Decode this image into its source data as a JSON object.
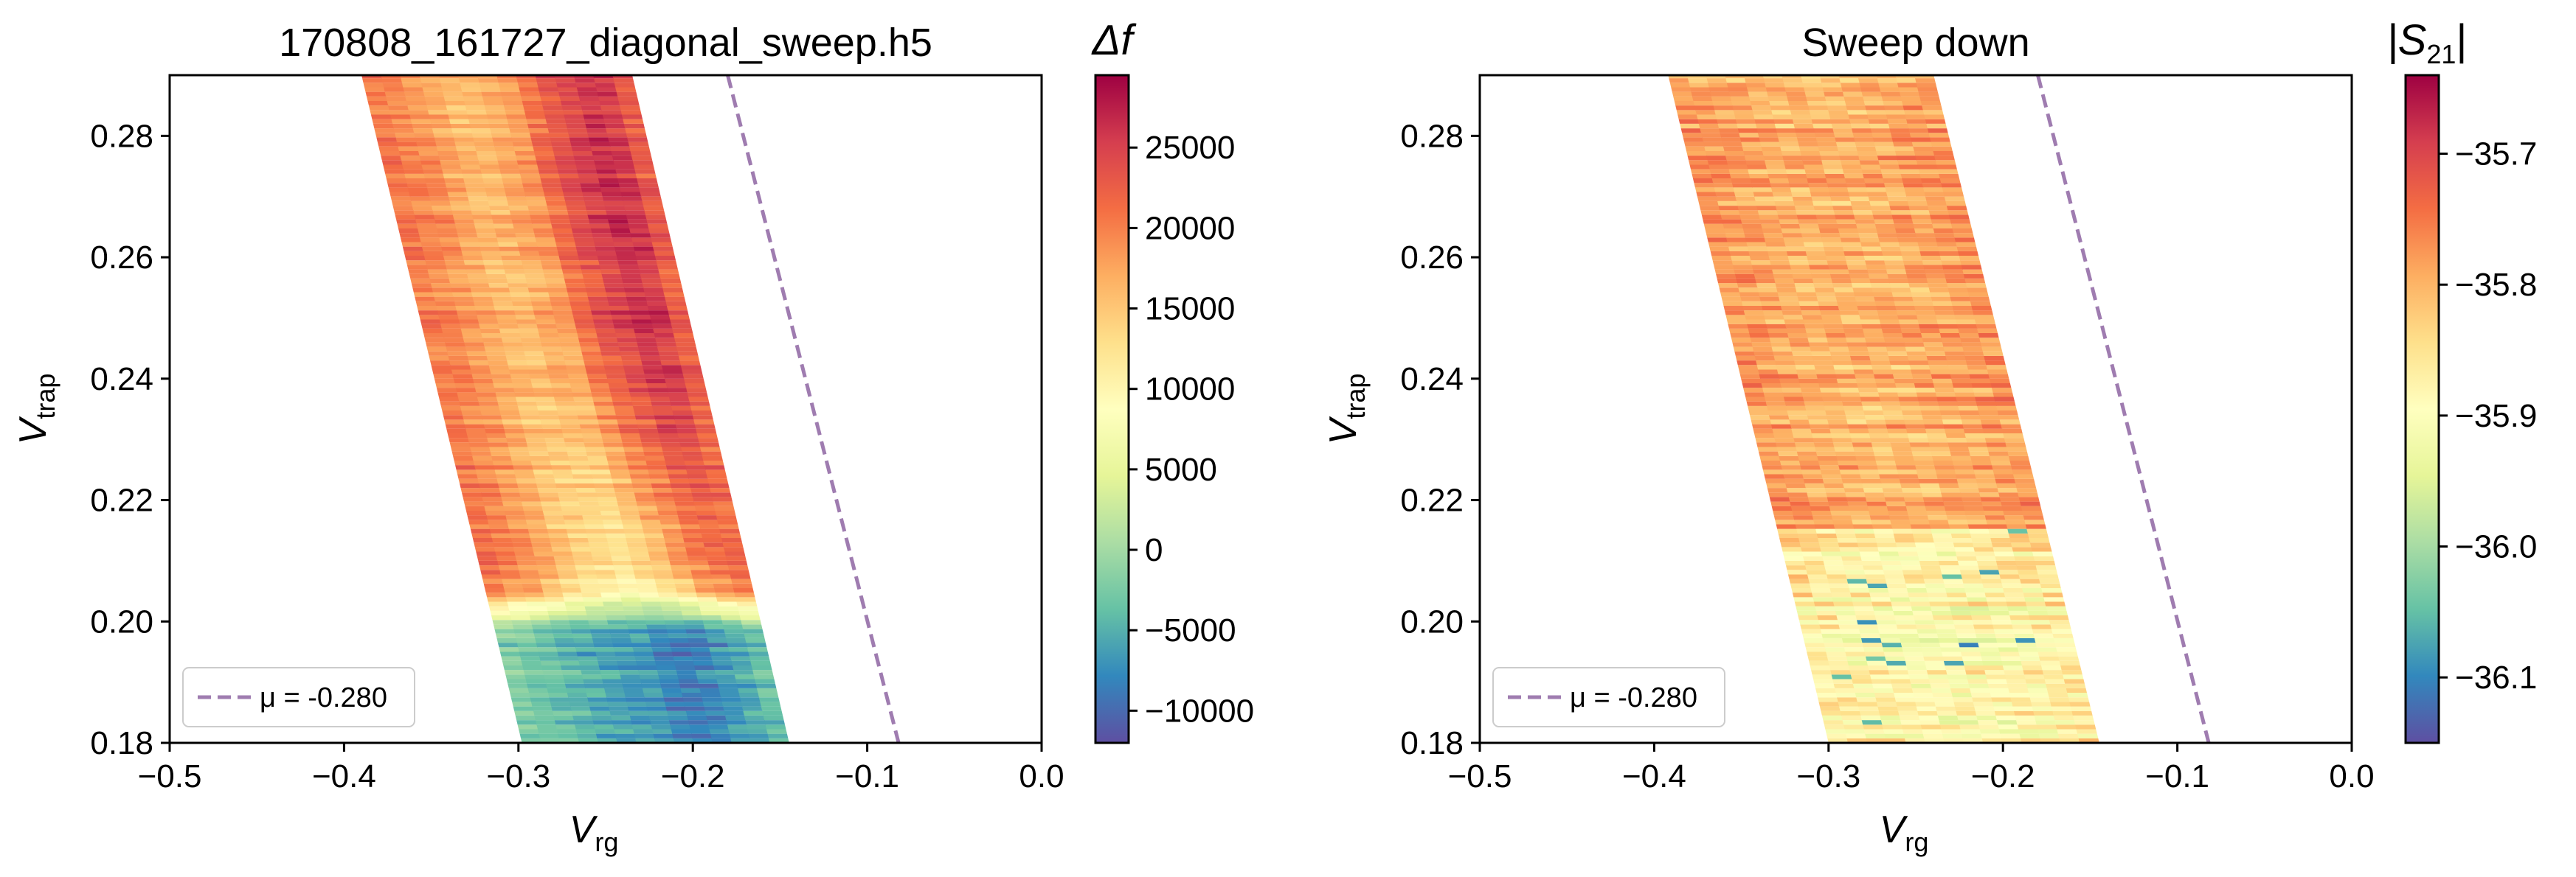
{
  "chart_data": [
    {
      "type": "heatmap",
      "title": "170808_161727_diagonal_sweep.h5",
      "xlabel": "V",
      "xlabel_sub": "rg",
      "ylabel": "V",
      "ylabel_sub": "trap",
      "xlim": [
        -0.5,
        0.0
      ],
      "ylim": [
        0.18,
        0.29
      ],
      "xticks": [
        -0.5,
        -0.4,
        -0.3,
        -0.2,
        -0.1,
        0.0
      ],
      "xtick_labels": [
        "−0.5",
        "−0.4",
        "−0.3",
        "−0.2",
        "−0.1",
        "0.0"
      ],
      "yticks": [
        0.18,
        0.2,
        0.22,
        0.24,
        0.26,
        0.28
      ],
      "ytick_labels": [
        "0.18",
        "0.20",
        "0.22",
        "0.24",
        "0.26",
        "0.28"
      ],
      "colormap": "Spectral_r",
      "colorbar_label": "Δf",
      "colorbar_range": [
        -12000,
        29500
      ],
      "colorbar_ticks": [
        -10000,
        -5000,
        0,
        5000,
        10000,
        15000,
        20000,
        25000
      ],
      "colorbar_tick_labels": [
        "−10000",
        "−5000",
        "0",
        "5000",
        "10000",
        "15000",
        "20000",
        "25000"
      ],
      "data_region": {
        "x_left_at_ymin": -0.298,
        "x_left_at_ymax": -0.39,
        "x_right_at_ymin": -0.145,
        "x_right_at_ymax": -0.235,
        "row_step": 0.00075
      },
      "value_profile": {
        "across_offsets": [
          0.0,
          0.2,
          0.35,
          0.55,
          0.62,
          0.72,
          0.86,
          1.0
        ],
        "high_v": [
          0.0,
          0.0,
          0.0,
          0.0,
          0.0,
          0.0,
          0.0,
          0.0
        ],
        "high_values": [
          21000,
          18500,
          15500,
          18500,
          22000,
          24500,
          27000,
          21500
        ],
        "mid_values": [
          21000,
          17500,
          13000,
          9500,
          11500,
          14000,
          19000,
          20500
        ],
        "low_values": [
          -2000,
          -4000,
          -6000,
          -7000,
          -8500,
          -9000,
          -6500,
          -3000
        ],
        "transition_v": [
          0.205,
          0.225
        ]
      },
      "fit_line": {
        "x": [
          -0.18,
          -0.082
        ],
        "y": [
          0.29,
          0.18
        ],
        "style": "dashed",
        "color": "#9f7cb0"
      },
      "legend": {
        "label": "μ = -0.280",
        "placement": "lower-left"
      }
    },
    {
      "type": "heatmap",
      "title": "Sweep down",
      "xlabel": "V",
      "xlabel_sub": "rg",
      "ylabel": "V",
      "ylabel_sub": "trap",
      "xlim": [
        -0.5,
        0.0
      ],
      "ylim": [
        0.18,
        0.29
      ],
      "xticks": [
        -0.5,
        -0.4,
        -0.3,
        -0.2,
        -0.1,
        0.0
      ],
      "xtick_labels": [
        "−0.5",
        "−0.4",
        "−0.3",
        "−0.2",
        "−0.1",
        "0.0"
      ],
      "yticks": [
        0.18,
        0.2,
        0.22,
        0.24,
        0.26,
        0.28
      ],
      "ytick_labels": [
        "0.18",
        "0.20",
        "0.22",
        "0.24",
        "0.26",
        "0.28"
      ],
      "colormap": "Spectral_r",
      "colorbar_label": "|S",
      "colorbar_label_sub": "21",
      "colorbar_label_end": "|",
      "colorbar_range": [
        -36.15,
        -35.64
      ],
      "colorbar_ticks": [
        -36.1,
        -36.0,
        -35.9,
        -35.8,
        -35.7
      ],
      "colorbar_tick_labels": [
        "−36.1",
        "−36.0",
        "−35.9",
        "−35.8",
        "−35.7"
      ],
      "data_region": {
        "x_left_at_ymin": -0.3,
        "x_left_at_ymax": -0.392,
        "x_right_at_ymin": -0.145,
        "x_right_at_ymax": -0.24,
        "row_step": 0.00075
      },
      "value_profile": {
        "upper_mean": -35.77,
        "upper_spread": 0.06,
        "lower_mean": -35.86,
        "lower_spread": 0.08,
        "transition_v": 0.215
      },
      "fit_line": {
        "x": [
          -0.18,
          -0.082
        ],
        "y": [
          0.29,
          0.18
        ],
        "style": "dashed",
        "color": "#9f7cb0"
      },
      "legend": {
        "label": "μ = -0.280",
        "placement": "lower-left"
      }
    }
  ]
}
